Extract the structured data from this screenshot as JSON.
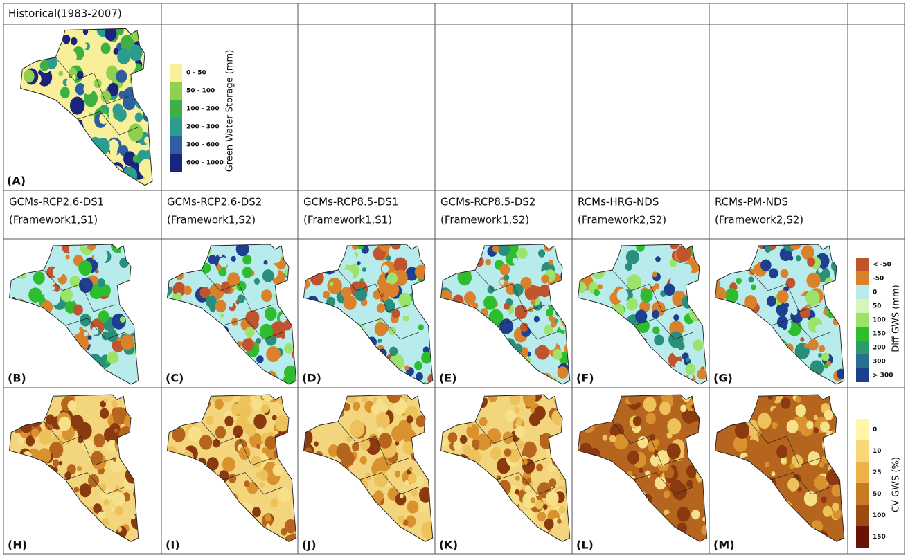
{
  "header": {
    "title": "Historical(1983-2007)"
  },
  "columns": [
    {
      "line1": "GCMs-RCP2.6-DS1",
      "line2": "(Framework1,S1)"
    },
    {
      "line1": "GCMs-RCP2.6-DS2",
      "line2": "(Framework1,S2)"
    },
    {
      "line1": "GCMs-RCP8.5-DS1",
      "line2": "(Framework1,S1)"
    },
    {
      "line1": "GCMs-RCP8.5-DS2",
      "line2": "(Framework1,S2)"
    },
    {
      "line1": "RCMs-HRG-NDS",
      "line2": "(Framework2,S2)"
    },
    {
      "line1": "RCMs-PM-NDS",
      "line2": "(Framework2,S2)"
    }
  ],
  "panel_labels": [
    "(A)",
    "(B)",
    "(C)",
    "(D)",
    "(E)",
    "(F)",
    "(G)",
    "(H)",
    "(I)",
    "(J)",
    "(K)",
    "(L)",
    "(M)"
  ],
  "legends": [
    {
      "title": "Green Water Storage (mm)",
      "items": [
        "0 - 50",
        "50 - 100",
        "100 - 200",
        "200 - 300",
        "300 - 600",
        "600 - 1000"
      ]
    },
    {
      "title": "Diff GWS (mm)",
      "items": [
        "< -50",
        "-50",
        "0",
        "50",
        "100",
        "150",
        "200",
        "300",
        "> 300"
      ]
    },
    {
      "title": "CV GWS (%)",
      "items": [
        "0",
        "10",
        "25",
        "50",
        "100",
        "150"
      ]
    }
  ]
}
